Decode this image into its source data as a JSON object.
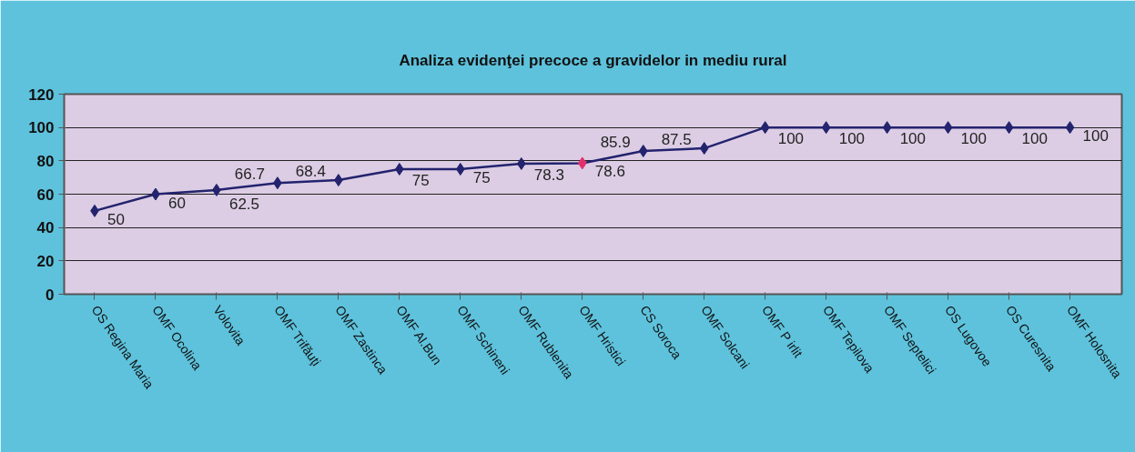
{
  "chart_data": {
    "type": "line",
    "title": "Analiza evidenţei precoce a gravidelor in mediu rural",
    "categories": [
      "OS Regina Maria",
      "OMF Ocolina",
      "Volovita",
      "OMF Trifăuţi",
      "OMF Zastinca",
      "OMF Al.Bun",
      "OMF Schineni",
      "OMF Rublenita",
      "OMF Hristici",
      "CS Soroca",
      "OMF Solcani",
      "OMF P irlit",
      "OMF Tepilova",
      "OMF Septelici",
      "OS Lugovoe",
      "OS Curesnita",
      "OMF Holosnita"
    ],
    "series": [
      {
        "color": "#23236e",
        "colors": [
          "#23236e",
          "#23236e",
          "#23236e",
          "#23236e",
          "#23236e",
          "#23236e",
          "#23236e",
          "#23236e",
          "#e3306c",
          "#23236e",
          "#23236e",
          "#23236e",
          "#23236e",
          "#23236e",
          "#23236e",
          "#23236e",
          "#23236e"
        ],
        "values": [
          50,
          60,
          62.5,
          66.7,
          68.4,
          75,
          75,
          78.3,
          78.6,
          85.9,
          87.5,
          100,
          100,
          100,
          100,
          100,
          100
        ]
      }
    ],
    "ylim": [
      0,
      120
    ],
    "yticks": [
      0,
      20,
      40,
      60,
      80,
      100,
      120
    ],
    "grid": "y",
    "marker": "diamond",
    "line_style": "solid",
    "data_labels": true
  }
}
